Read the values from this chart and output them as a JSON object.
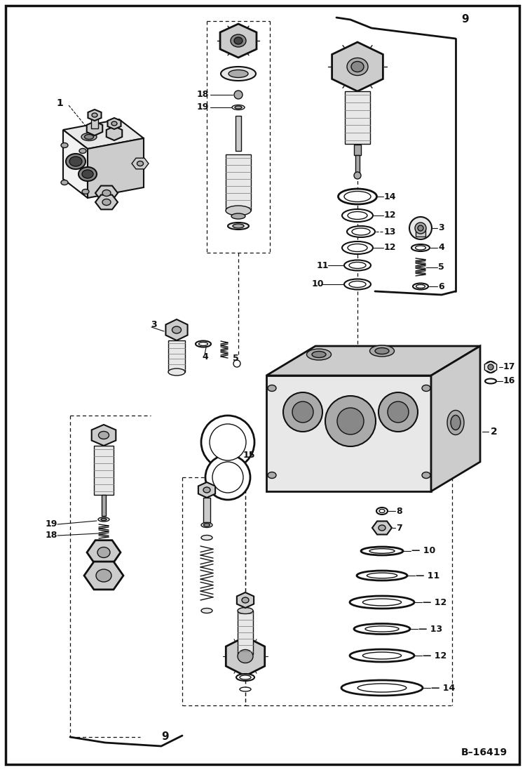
{
  "figure_width": 7.49,
  "figure_height": 10.97,
  "dpi": 100,
  "bg_color": "#ffffff",
  "border_lw": 2.0,
  "diagram_code": "B-16419"
}
